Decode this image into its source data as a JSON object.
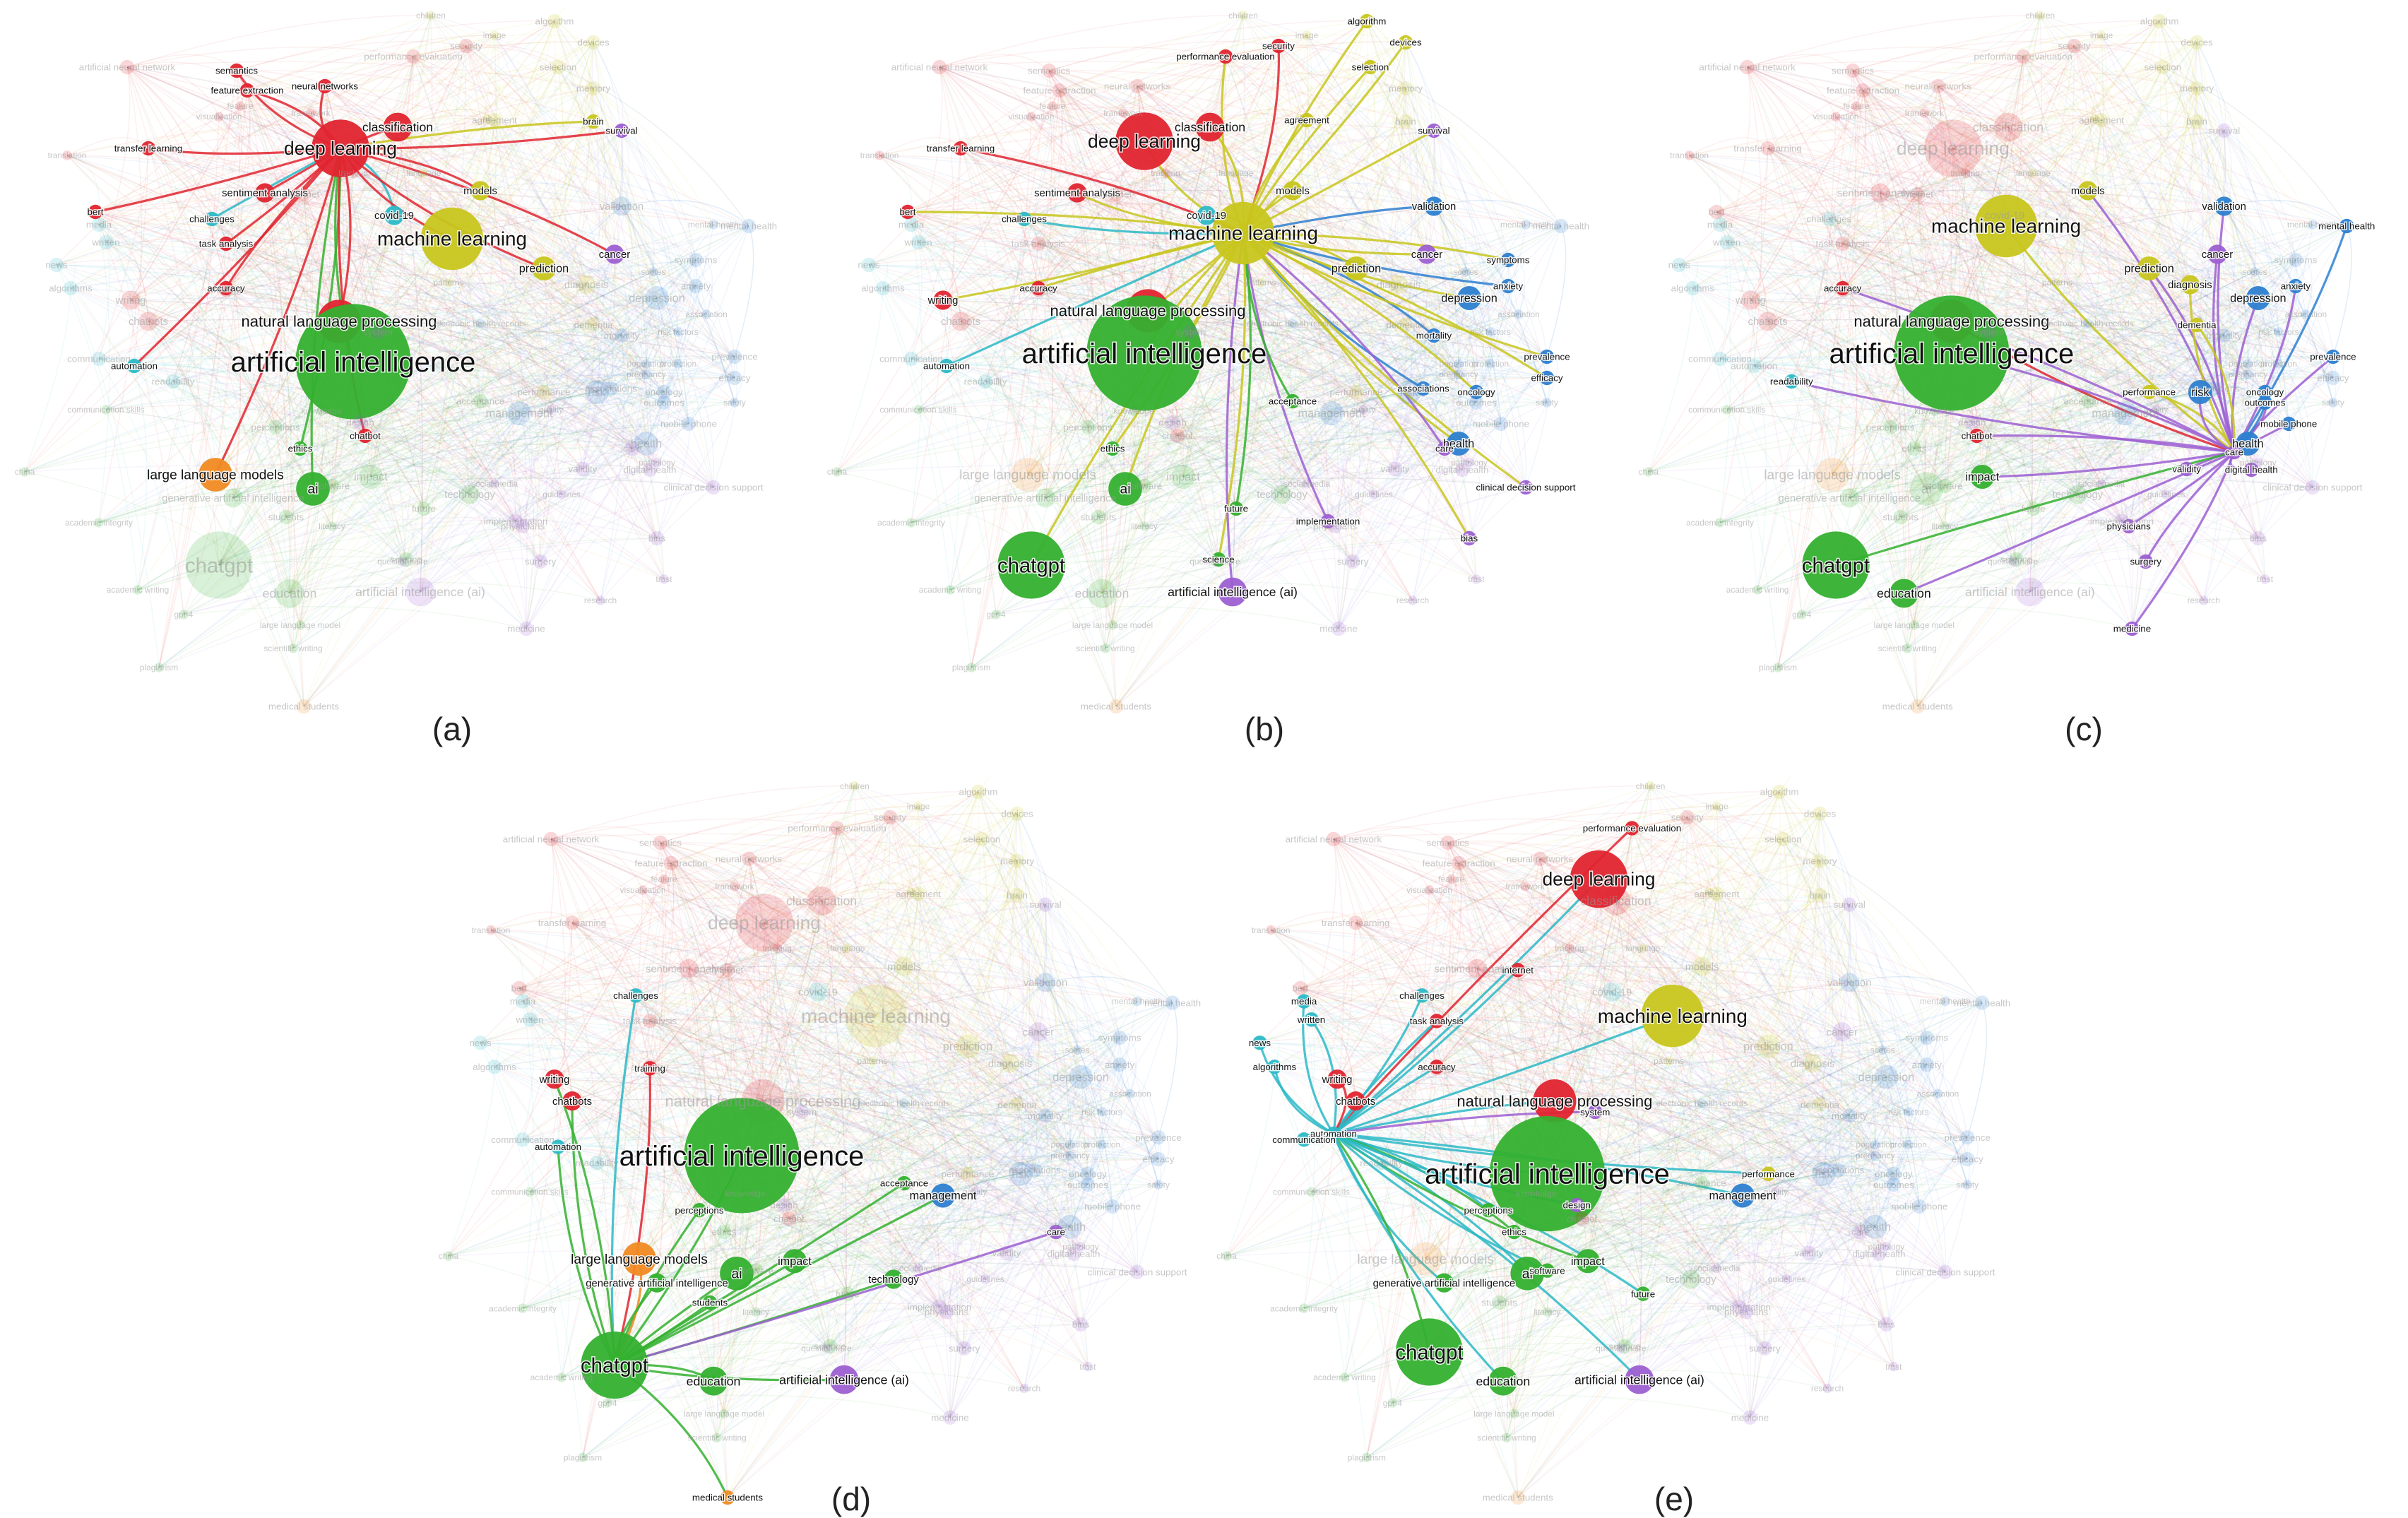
{
  "colors": {
    "red": "#e0242f",
    "olive": "#c8c61d",
    "green": "#34b02f",
    "blue": "#2d7fd0",
    "cyan": "#2cb9c7",
    "purple": "#9c5fd1",
    "orange": "#f08a22",
    "gray_link": "#bdbdbd"
  },
  "node_catalog": {
    "artificial neural network": {
      "c": "red",
      "s": 3
    },
    "semantics": {
      "c": "red",
      "s": 3
    },
    "feature extraction": {
      "c": "red",
      "s": 3
    },
    "neural networks": {
      "c": "red",
      "s": 3
    },
    "classification": {
      "c": "red",
      "s": 6
    },
    "deep learning": {
      "c": "red",
      "s": 12
    },
    "transfer learning": {
      "c": "red",
      "s": 3
    },
    "sentiment analysis": {
      "c": "red",
      "s": 4
    },
    "challenges": {
      "c": "cyan",
      "s": 3
    },
    "task analysis": {
      "c": "red",
      "s": 3
    },
    "bert": {
      "c": "red",
      "s": 3
    },
    "covid-19": {
      "c": "cyan",
      "s": 4
    },
    "machine learning": {
      "c": "olive",
      "s": 13
    },
    "natural language processing": {
      "c": "red",
      "s": 9
    },
    "artificial intelligence": {
      "c": "green",
      "s": 24
    },
    "automation": {
      "c": "cyan",
      "s": 3
    },
    "accuracy": {
      "c": "red",
      "s": 3
    },
    "ethics": {
      "c": "green",
      "s": 3
    },
    "chatbot": {
      "c": "red",
      "s": 3
    },
    "large language models": {
      "c": "orange",
      "s": 7
    },
    "ai": {
      "c": "green",
      "s": 7
    },
    "generative artificial intelligence": {
      "c": "green",
      "s": 4
    },
    "chatgpt": {
      "c": "green",
      "s": 14
    },
    "education": {
      "c": "green",
      "s": 6
    },
    "artificial intelligence (ai)": {
      "c": "purple",
      "s": 6
    },
    "security": {
      "c": "red",
      "s": 3
    },
    "algorithm": {
      "c": "olive",
      "s": 3
    },
    "devices": {
      "c": "olive",
      "s": 3
    },
    "selection": {
      "c": "olive",
      "s": 3
    },
    "memory": {
      "c": "olive",
      "s": 3
    },
    "performance evaluation": {
      "c": "red",
      "s": 3
    },
    "agreement": {
      "c": "olive",
      "s": 3
    },
    "survival": {
      "c": "purple",
      "s": 3
    },
    "brain": {
      "c": "olive",
      "s": 3
    },
    "models": {
      "c": "olive",
      "s": 4
    },
    "validation": {
      "c": "blue",
      "s": 4
    },
    "cancer": {
      "c": "purple",
      "s": 4
    },
    "prediction": {
      "c": "olive",
      "s": 5
    },
    "symptoms": {
      "c": "blue",
      "s": 3
    },
    "anxiety": {
      "c": "blue",
      "s": 3
    },
    "depression": {
      "c": "blue",
      "s": 5
    },
    "mortality": {
      "c": "blue",
      "s": 3
    },
    "prevalence": {
      "c": "blue",
      "s": 3
    },
    "efficacy": {
      "c": "blue",
      "s": 3
    },
    "associations": {
      "c": "blue",
      "s": 3
    },
    "oncology": {
      "c": "blue",
      "s": 3
    },
    "health": {
      "c": "blue",
      "s": 5
    },
    "care": {
      "c": "purple",
      "s": 3
    },
    "clinical decision support": {
      "c": "purple",
      "s": 3
    },
    "bias": {
      "c": "purple",
      "s": 3
    },
    "implementation": {
      "c": "purple",
      "s": 3
    },
    "writing": {
      "c": "red",
      "s": 4
    },
    "acceptance": {
      "c": "green",
      "s": 3
    },
    "future": {
      "c": "green",
      "s": 3
    },
    "science": {
      "c": "green",
      "s": 3
    },
    "mental health": {
      "c": "blue",
      "s": 3
    },
    "diagnosis": {
      "c": "olive",
      "s": 4
    },
    "dementia": {
      "c": "olive",
      "s": 3
    },
    "readability": {
      "c": "cyan",
      "s": 3
    },
    "performance": {
      "c": "olive",
      "s": 3
    },
    "risk": {
      "c": "blue",
      "s": 5
    },
    "outcomes": {
      "c": "blue",
      "s": 3
    },
    "mobile phone": {
      "c": "blue",
      "s": 3
    },
    "impact": {
      "c": "green",
      "s": 5
    },
    "validity": {
      "c": "purple",
      "s": 3
    },
    "digital health": {
      "c": "purple",
      "s": 3
    },
    "physicians": {
      "c": "purple",
      "s": 3
    },
    "surgery": {
      "c": "purple",
      "s": 3
    },
    "medicine": {
      "c": "purple",
      "s": 3
    },
    "chatbots": {
      "c": "red",
      "s": 4
    },
    "training": {
      "c": "red",
      "s": 3
    },
    "perceptions": {
      "c": "green",
      "s": 3
    },
    "management": {
      "c": "blue",
      "s": 5
    },
    "technology": {
      "c": "green",
      "s": 4
    },
    "students": {
      "c": "green",
      "s": 3
    },
    "medical students": {
      "c": "orange",
      "s": 3
    },
    "internet": {
      "c": "red",
      "s": 3
    },
    "media": {
      "c": "cyan",
      "s": 3
    },
    "written": {
      "c": "cyan",
      "s": 3
    },
    "news": {
      "c": "cyan",
      "s": 3
    },
    "algorithms": {
      "c": "cyan",
      "s": 3
    },
    "communication": {
      "c": "cyan",
      "s": 3
    },
    "system": {
      "c": "purple",
      "s": 3
    },
    "design": {
      "c": "purple",
      "s": 3
    },
    "software": {
      "c": "green",
      "s": 3
    },
    "children": {
      "c": "olive",
      "s": 2
    },
    "image": {
      "c": "olive",
      "s": 2
    },
    "visualization": {
      "c": "red",
      "s": 2
    },
    "translation": {
      "c": "red",
      "s": 2
    },
    "language": {
      "c": "olive",
      "s": 2
    },
    "tracking": {
      "c": "red",
      "s": 2
    },
    "air": {
      "c": "olive",
      "s": 2
    },
    "risk factors": {
      "c": "blue",
      "s": 2
    },
    "patterns": {
      "c": "olive",
      "s": 2
    },
    "scores": {
      "c": "blue",
      "s": 2
    },
    "association": {
      "c": "blue",
      "s": 2
    },
    "population": {
      "c": "blue",
      "s": 2
    },
    "safety": {
      "c": "blue",
      "s": 2
    },
    "pregnancy": {
      "c": "blue",
      "s": 2
    },
    "protection": {
      "c": "blue",
      "s": 2
    },
    "china": {
      "c": "green",
      "s": 2
    },
    "communication skills": {
      "c": "green",
      "s": 2
    },
    "academic integrity": {
      "c": "green",
      "s": 2
    },
    "academic writing": {
      "c": "green",
      "s": 2
    },
    "gpt-4": {
      "c": "green",
      "s": 2
    },
    "large language model": {
      "c": "green",
      "s": 2
    },
    "scientific writing": {
      "c": "green",
      "s": 2
    },
    "plagiarism": {
      "c": "green",
      "s": 2
    },
    "guidelines": {
      "c": "purple",
      "s": 2
    },
    "social media": {
      "c": "purple",
      "s": 2
    },
    "questionnaire": {
      "c": "purple",
      "s": 2
    },
    "pathology": {
      "c": "purple",
      "s": 2
    },
    "trust": {
      "c": "purple",
      "s": 2
    },
    "quality": {
      "c": "purple",
      "s": 2
    },
    "research": {
      "c": "purple",
      "s": 2
    },
    "framework": {
      "c": "red",
      "s": 2
    },
    "electronic health records": {
      "c": "blue",
      "s": 2
    },
    "knowledge": {
      "c": "green",
      "s": 2
    },
    "literacy": {
      "c": "green",
      "s": 2
    },
    "feature": {
      "c": "red",
      "s": 2
    },
    "mental-health": {
      "c": "blue",
      "s": 2
    }
  },
  "panels": [
    {
      "label": "(a)",
      "hub": "deep learning",
      "hub_color": "red",
      "bold_labels": [
        "deep learning",
        "semantics",
        "feature extraction",
        "neural networks",
        "classification",
        "transfer learning",
        "neural networks",
        "sentiment analysis",
        "challenges",
        "task analysis",
        "bert",
        "covid-19",
        "machine learning",
        "natural language processing",
        "artificial intelligence",
        "automation",
        "accuracy",
        "ethics",
        "chatbot",
        "large language models",
        "ai",
        "cancer",
        "prediction",
        "brain",
        "survival",
        "models"
      ]
    },
    {
      "label": "(b)",
      "hub": "machine learning",
      "hub_color": "olive",
      "bold_labels": [
        "machine learning",
        "algorithm",
        "devices",
        "selection",
        "security",
        "performance evaluation",
        "classification",
        "agreement",
        "survival",
        "deep learning",
        "transfer learning",
        "sentiment analysis",
        "bert",
        "challenges",
        "covid-19",
        "models",
        "validation",
        "cancer",
        "symptoms",
        "anxiety",
        "prediction",
        "depression",
        "mortality",
        "prevalence",
        "efficacy",
        "associations",
        "oncology",
        "health",
        "care",
        "clinical decision support",
        "bias",
        "implementation",
        "natural language processing",
        "artificial intelligence",
        "automation",
        "writing",
        "accuracy",
        "acceptance",
        "ethics",
        "ai",
        "future",
        "chatgpt",
        "science",
        "artificial intelligence (ai)"
      ]
    },
    {
      "label": "(c)",
      "hub": "care",
      "hub_color": "purple",
      "bold_labels": [
        "machine learning",
        "models",
        "validation",
        "mental health",
        "cancer",
        "prediction",
        "diagnosis",
        "anxiety",
        "depression",
        "dementia",
        "prevalence",
        "accuracy",
        "natural language processing",
        "artificial intelligence",
        "readability",
        "performance",
        "risk",
        "chatbot",
        "health",
        "care",
        "outcomes",
        "mobile phone",
        "oncology",
        "impact",
        "validity",
        "digital health",
        "physicians",
        "surgery",
        "chatgpt",
        "education",
        "medicine"
      ]
    },
    {
      "label": "(d)",
      "hub": "chatgpt",
      "hub_color": "green",
      "bold_labels": [
        "challenges",
        "writing",
        "chatbots",
        "training",
        "automation",
        "artificial intelligence",
        "perceptions",
        "acceptance",
        "management",
        "large language models",
        "generative artificial intelligence",
        "students",
        "ai",
        "impact",
        "technology",
        "chatgpt",
        "education",
        "artificial intelligence (ai)",
        "medical students",
        "care"
      ]
    },
    {
      "label": "(e)",
      "hub": "automation",
      "hub_color": "cyan",
      "bold_labels": [
        "performance evaluation",
        "deep learning",
        "machine learning",
        "challenges",
        "task analysis",
        "internet",
        "media",
        "written",
        "accuracy",
        "writing",
        "news",
        "chatbots",
        "algorithms",
        "natural language processing",
        "artificial intelligence",
        "system",
        "automation",
        "performance",
        "management",
        "communication",
        "perceptions",
        "design",
        "ethics",
        "generative artificial intelligence",
        "ai",
        "impact",
        "future",
        "software",
        "chatgpt",
        "education",
        "artificial intelligence (ai)"
      ]
    }
  ]
}
